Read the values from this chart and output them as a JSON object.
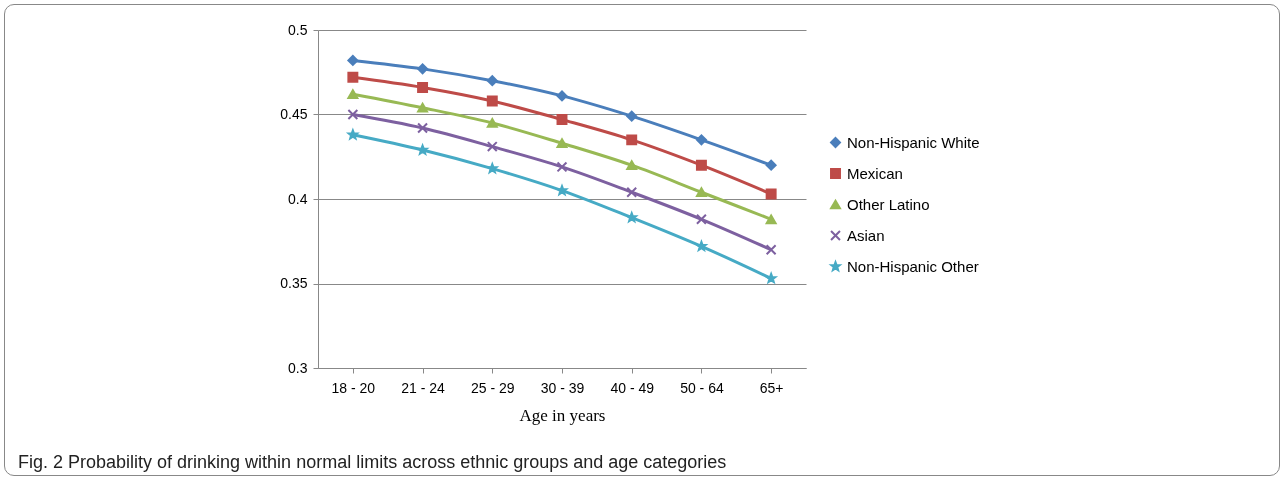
{
  "chart_data": {
    "type": "line",
    "xlabel": "Age in years",
    "annotations": [
      "Fig. 2 Probability of drinking within normal limits across ethnic groups and age categories"
    ],
    "categories": [
      "18 - 20",
      "21 - 24",
      "25 - 29",
      "30 - 39",
      "40 - 49",
      "50 - 64",
      "65+"
    ],
    "series": [
      {
        "name": "Non-Hispanic White",
        "color": "#4a7ebb",
        "marker": "diamond",
        "values": [
          0.482,
          0.477,
          0.47,
          0.461,
          0.449,
          0.435,
          0.42
        ]
      },
      {
        "name": "Mexican",
        "color": "#be4b48",
        "marker": "square",
        "values": [
          0.472,
          0.466,
          0.458,
          0.447,
          0.435,
          0.42,
          0.403
        ]
      },
      {
        "name": "Other Latino",
        "color": "#98b954",
        "marker": "triangle",
        "values": [
          0.462,
          0.454,
          0.445,
          0.433,
          0.42,
          0.404,
          0.388
        ]
      },
      {
        "name": "Asian",
        "color": "#7d60a0",
        "marker": "cross",
        "values": [
          0.45,
          0.442,
          0.431,
          0.419,
          0.404,
          0.388,
          0.37
        ]
      },
      {
        "name": "Non-Hispanic Other",
        "color": "#46aac5",
        "marker": "star",
        "values": [
          0.438,
          0.429,
          0.418,
          0.405,
          0.389,
          0.372,
          0.353
        ]
      }
    ],
    "ylim": [
      0.3,
      0.5
    ],
    "yticks": [
      0.3,
      0.35,
      0.4,
      0.45,
      0.5
    ],
    "grid": "y",
    "legend": "right",
    "line_style": "solid"
  }
}
